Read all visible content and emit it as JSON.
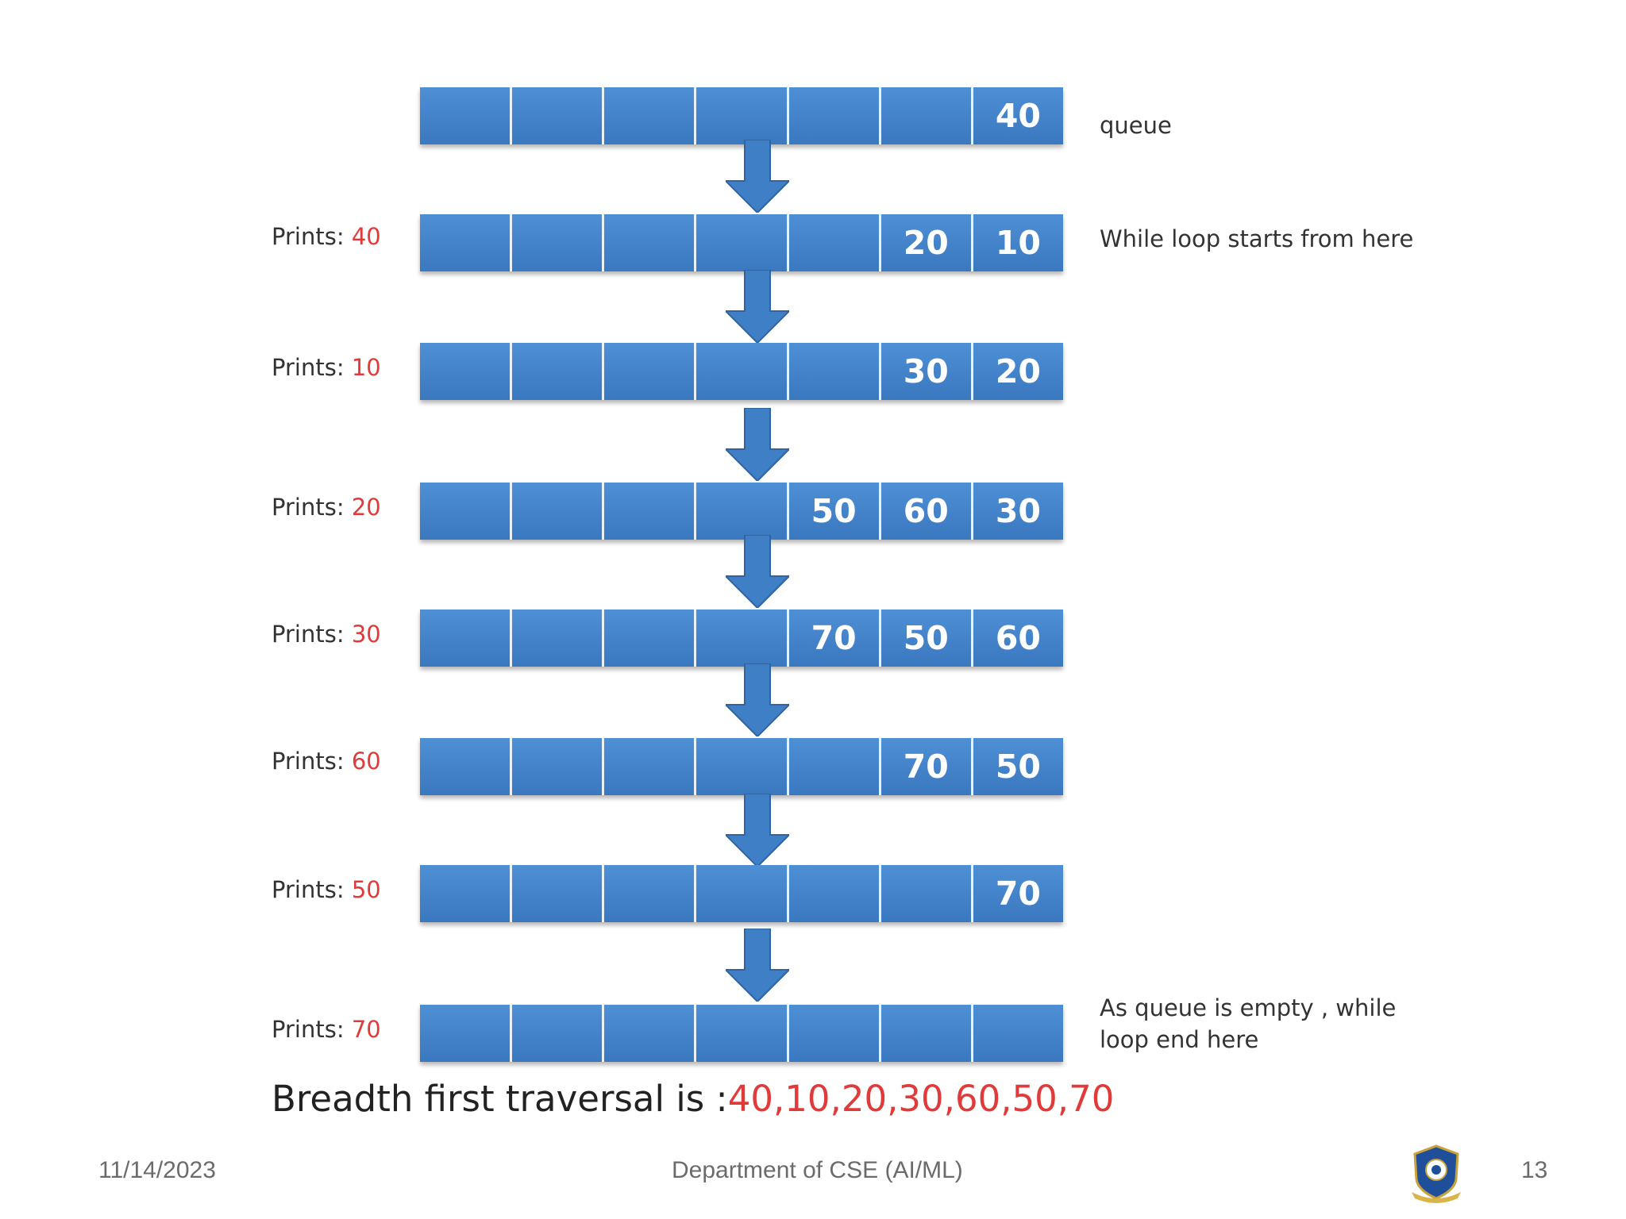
{
  "rows": [
    {
      "prefix": "",
      "printed": "",
      "cells": [
        "",
        "",
        "",
        "",
        "",
        "",
        "40"
      ]
    },
    {
      "prefix": "Prints: ",
      "printed": "40",
      "cells": [
        "",
        "",
        "",
        "",
        "",
        "20",
        "10"
      ]
    },
    {
      "prefix": "Prints: ",
      "printed": "10",
      "cells": [
        "",
        "",
        "",
        "",
        "",
        "30",
        "20"
      ]
    },
    {
      "prefix": "Prints: ",
      "printed": "20",
      "cells": [
        "",
        "",
        "",
        "",
        "50",
        "60",
        "30"
      ]
    },
    {
      "prefix": "Prints: ",
      "printed": "30",
      "cells": [
        "",
        "",
        "",
        "",
        "70",
        "50",
        "60"
      ]
    },
    {
      "prefix": "Prints: ",
      "printed": "60",
      "cells": [
        "",
        "",
        "",
        "",
        "",
        "70",
        "50"
      ]
    },
    {
      "prefix": "Prints: ",
      "printed": "50",
      "cells": [
        "",
        "",
        "",
        "",
        "",
        "",
        "70"
      ]
    },
    {
      "prefix": "Prints: ",
      "printed": "70",
      "cells": [
        "",
        "",
        "",
        "",
        "",
        "",
        ""
      ]
    }
  ],
  "notes": {
    "queue": "queue",
    "loop_start": "While loop starts from here",
    "loop_end_line1": "As queue is empty , while",
    "loop_end_line2": "loop end here"
  },
  "result": {
    "label": "Breadth first traversal is :",
    "value": "40,10,20,30,60,50,70"
  },
  "footer": {
    "date": "11/14/2023",
    "department": "Department of CSE (AI/ML)",
    "page": "13"
  },
  "colors": {
    "cell": "#3f7fc6",
    "highlight": "#e03a3a"
  }
}
